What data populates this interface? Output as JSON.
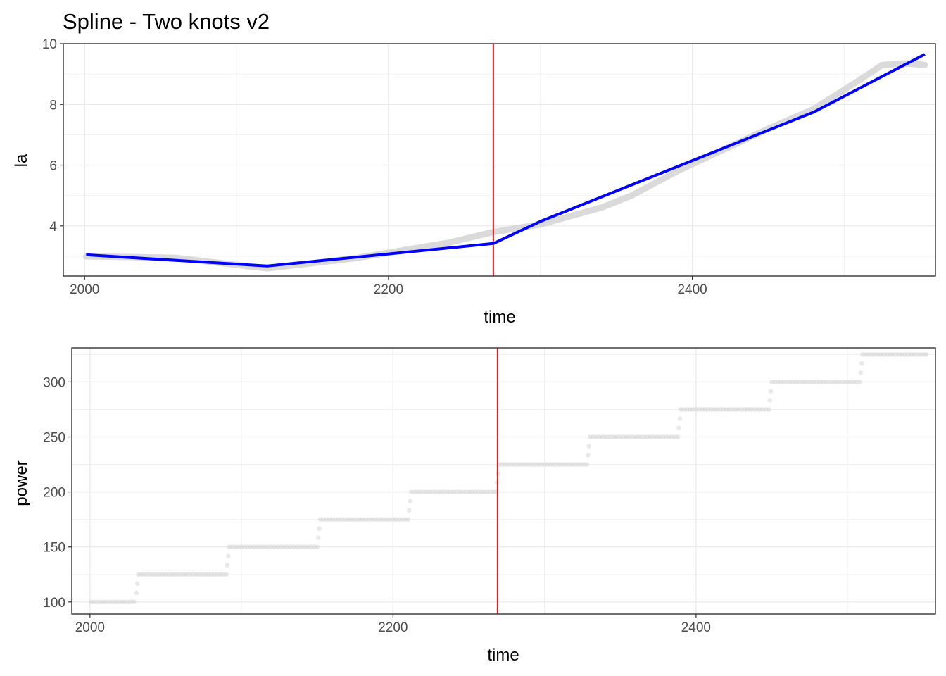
{
  "chart_data": [
    {
      "type": "line",
      "title": "Spline - Two knots v2",
      "xlabel": "time",
      "ylabel": "la",
      "xlim": [
        1986,
        2560
      ],
      "ylim": [
        2.35,
        10.0
      ],
      "x_ticks": [
        2000,
        2200,
        2400
      ],
      "y_ticks": [
        4,
        6,
        8,
        10
      ],
      "grid": true,
      "vline": {
        "x": 2269,
        "color": "#e41a1c"
      },
      "series": [
        {
          "color": "#0000ff",
          "x": [
            2001,
            2120,
            2269,
            2300,
            2360,
            2420,
            2480,
            2553
          ],
          "y": [
            3.05,
            2.68,
            3.42,
            4.15,
            5.35,
            6.55,
            7.75,
            9.65
          ]
        },
        {
          "color": "#d3d3d3",
          "x": [
            2001,
            2060,
            2120,
            2180,
            2240,
            2269,
            2300,
            2340,
            2360,
            2390,
            2420,
            2450,
            2480,
            2510,
            2525,
            2540,
            2553
          ],
          "y": [
            3.0,
            2.95,
            2.6,
            2.95,
            3.45,
            3.8,
            4.05,
            4.6,
            5.0,
            5.8,
            6.5,
            7.2,
            7.85,
            8.8,
            9.3,
            9.35,
            9.3
          ]
        }
      ]
    },
    {
      "type": "scatter",
      "xlabel": "time",
      "ylabel": "power",
      "xlim": [
        1988,
        2558
      ],
      "ylim": [
        89,
        331
      ],
      "x_ticks": [
        2000,
        2200,
        2400
      ],
      "y_ticks": [
        100,
        150,
        200,
        250,
        300
      ],
      "grid": true,
      "vline": {
        "x": 2269,
        "color": "#e41a1c"
      },
      "point_color": "#d3d3d3",
      "steps": [
        {
          "x0": 2001,
          "x1": 2030,
          "y": 100
        },
        {
          "x0": 2032,
          "x1": 2090,
          "y": 125
        },
        {
          "x0": 2092,
          "x1": 2150,
          "y": 150
        },
        {
          "x0": 2152,
          "x1": 2210,
          "y": 175
        },
        {
          "x0": 2212,
          "x1": 2268,
          "y": 200
        },
        {
          "x0": 2270,
          "x1": 2328,
          "y": 225
        },
        {
          "x0": 2330,
          "x1": 2388,
          "y": 250
        },
        {
          "x0": 2390,
          "x1": 2448,
          "y": 275
        },
        {
          "x0": 2450,
          "x1": 2508,
          "y": 300
        },
        {
          "x0": 2510,
          "x1": 2553,
          "y": 325
        }
      ]
    }
  ]
}
